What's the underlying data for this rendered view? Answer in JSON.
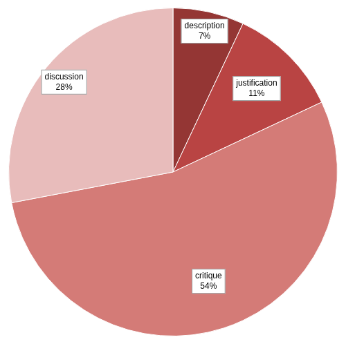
{
  "chart_data": {
    "type": "pie",
    "categories": [
      "description",
      "justification",
      "critique",
      "discussion"
    ],
    "values": [
      7,
      11,
      54,
      28
    ],
    "value_labels": [
      "7%",
      "11%",
      "54%",
      "28%"
    ],
    "colors": [
      "#943634",
      "#b94443",
      "#d47b77",
      "#e8bcbb"
    ],
    "data_labels": true
  }
}
